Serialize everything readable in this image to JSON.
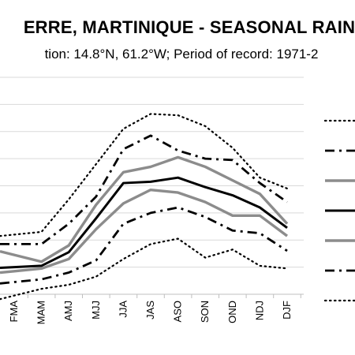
{
  "header": {
    "title": "ERRE, MARTINIQUE - SEASONAL RAIN",
    "subtitle": "tion: 14.8°N, 61.2°W; Period of record: 1971-2"
  },
  "chart_data": {
    "type": "line",
    "title": "ERRE, MARTINIQUE - SEASONAL RAIN",
    "subtitle": "tion: 14.8°N, 61.2°W; Period of record: 1971-2",
    "categories": [
      "FMA",
      "MAM",
      "AMJ",
      "MJJ",
      "JJA",
      "JAS",
      "ASO",
      "SON",
      "OND",
      "NDJ",
      "DJF"
    ],
    "ylim": [
      0,
      8
    ],
    "grid": true,
    "legend_position": "right",
    "series": [
      {
        "style": "dotted-thin",
        "color": "#000000",
        "values": [
          2.2,
          2.3,
          3.5,
          4.8,
          6.1,
          6.65,
          6.6,
          6.2,
          5.4,
          4.3,
          3.9
        ]
      },
      {
        "style": "dashdot",
        "color": "#000000",
        "values": [
          1.85,
          1.85,
          2.6,
          3.6,
          5.35,
          5.85,
          5.3,
          5.0,
          4.95,
          4.1,
          3.4
        ]
      },
      {
        "style": "solid-gray",
        "color": "#8c8c8c",
        "values": [
          1.45,
          1.2,
          1.8,
          3.3,
          4.5,
          4.7,
          5.05,
          4.7,
          4.2,
          3.7,
          2.6
        ]
      },
      {
        "style": "solid-black",
        "color": "#000000",
        "values": [
          1.0,
          1.05,
          1.55,
          2.8,
          4.1,
          4.15,
          4.3,
          3.95,
          3.65,
          3.2,
          2.45
        ]
      },
      {
        "style": "solid-gray",
        "color": "#8c8c8c",
        "values": [
          0.85,
          0.95,
          1.3,
          2.4,
          3.35,
          3.85,
          3.75,
          3.4,
          2.9,
          2.9,
          2.15
        ]
      },
      {
        "style": "dashdot",
        "color": "#000000",
        "values": [
          0.45,
          0.55,
          0.8,
          1.25,
          2.6,
          3.0,
          3.2,
          2.85,
          2.35,
          2.25,
          1.6
        ]
      },
      {
        "style": "dotted-thin",
        "color": "#000000",
        "values": [
          -0.05,
          0.2,
          0.35,
          0.65,
          1.3,
          1.85,
          2.05,
          1.35,
          1.65,
          1.05,
          0.95
        ]
      }
    ]
  }
}
